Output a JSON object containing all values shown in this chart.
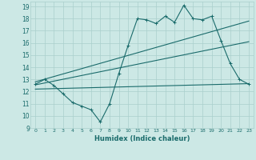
{
  "xlabel": "Humidex (Indice chaleur)",
  "bg_color": "#cce8e5",
  "line_color": "#1a6b6b",
  "grid_color": "#aacfcc",
  "xlim": [
    -0.5,
    23.5
  ],
  "ylim": [
    9,
    19.4
  ],
  "xticks": [
    0,
    1,
    2,
    3,
    4,
    5,
    6,
    7,
    8,
    9,
    10,
    11,
    12,
    13,
    14,
    15,
    16,
    17,
    18,
    19,
    20,
    21,
    22,
    23
  ],
  "yticks": [
    9,
    10,
    11,
    12,
    13,
    14,
    15,
    16,
    17,
    18,
    19
  ],
  "line1_x": [
    0,
    1,
    2,
    3,
    4,
    5,
    6,
    7,
    8,
    9,
    10,
    11,
    12,
    13,
    14,
    15,
    16,
    17,
    18,
    19,
    20,
    21,
    22,
    23
  ],
  "line1_y": [
    12.6,
    13.0,
    12.5,
    11.8,
    11.1,
    10.8,
    10.5,
    9.5,
    11.0,
    13.5,
    15.8,
    18.0,
    17.9,
    17.6,
    18.2,
    17.7,
    19.1,
    18.0,
    17.9,
    18.2,
    16.2,
    14.3,
    13.0,
    12.6
  ],
  "line2_x": [
    0,
    23
  ],
  "line2_y": [
    12.8,
    17.8
  ],
  "line3_x": [
    0,
    23
  ],
  "line3_y": [
    12.55,
    16.1
  ],
  "line4_x": [
    0,
    23
  ],
  "line4_y": [
    12.2,
    12.65
  ]
}
